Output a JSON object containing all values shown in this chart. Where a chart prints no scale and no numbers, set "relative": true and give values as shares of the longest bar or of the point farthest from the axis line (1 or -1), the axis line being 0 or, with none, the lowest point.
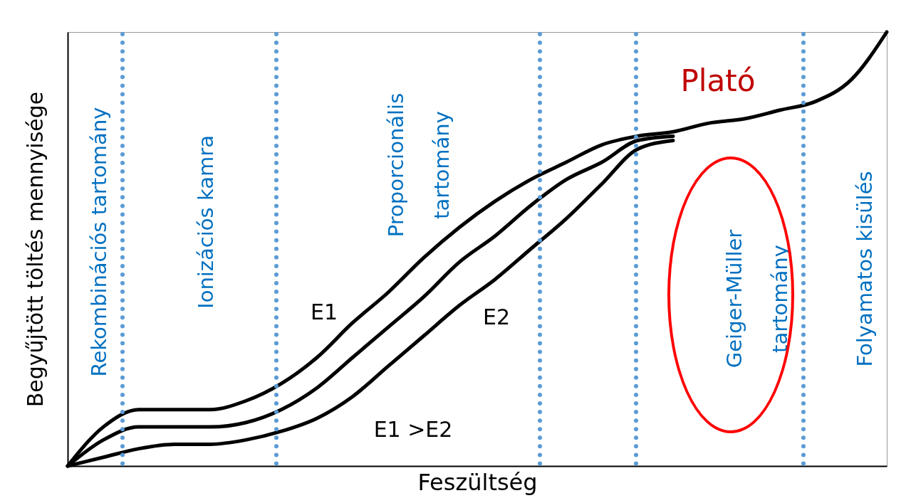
{
  "chart_data": {
    "type": "line",
    "relative": true,
    "xlabel": "Feszültség",
    "ylabel": "Begyűjtött töltés mennyisége",
    "categories": [
      null,
      null,
      null,
      null,
      null,
      null,
      null,
      null,
      null,
      null,
      null,
      null,
      null,
      null,
      null,
      null,
      null,
      null,
      null,
      null,
      null,
      null,
      null,
      null
    ],
    "series": [
      {
        "name": "E1",
        "color": "#000000",
        "values": [
          0,
          0.09,
          0.13,
          0.13,
          0.13,
          0.15,
          0.19,
          0.25,
          0.33,
          0.4,
          0.48,
          0.55,
          0.61,
          0.66,
          0.7,
          0.74,
          0.76,
          0.77,
          0.79,
          0.8,
          0.82,
          0.84,
          0.89,
          1
        ]
      },
      {
        "color": "#000000",
        "values": [
          0,
          0.06,
          0.09,
          0.09,
          0.09,
          0.1,
          0.13,
          0.18,
          0.25,
          0.32,
          0.39,
          0.47,
          0.53,
          0.6,
          0.66,
          0.7,
          0.75,
          0.76,
          null,
          null,
          null,
          null,
          null,
          null
        ]
      },
      {
        "name": "E2",
        "color": "#000000",
        "values": [
          0,
          0.02,
          0.04,
          0.05,
          0.05,
          0.06,
          0.08,
          0.11,
          0.16,
          0.23,
          0.3,
          0.37,
          0.43,
          0.5,
          0.57,
          0.65,
          0.73,
          0.75,
          null,
          null,
          null,
          null,
          null,
          null
        ]
      }
    ],
    "annotations": [
      "Rekombinációs tartomány",
      "Ionizációs kamra",
      "Proporcionális tartomány",
      "Plató",
      "Geiger-Müller tartomány",
      "Folyamatos kisülés",
      "E1 >E2"
    ],
    "legend": false,
    "line_style": "solid",
    "marker": "none",
    "grid": false
  }
}
